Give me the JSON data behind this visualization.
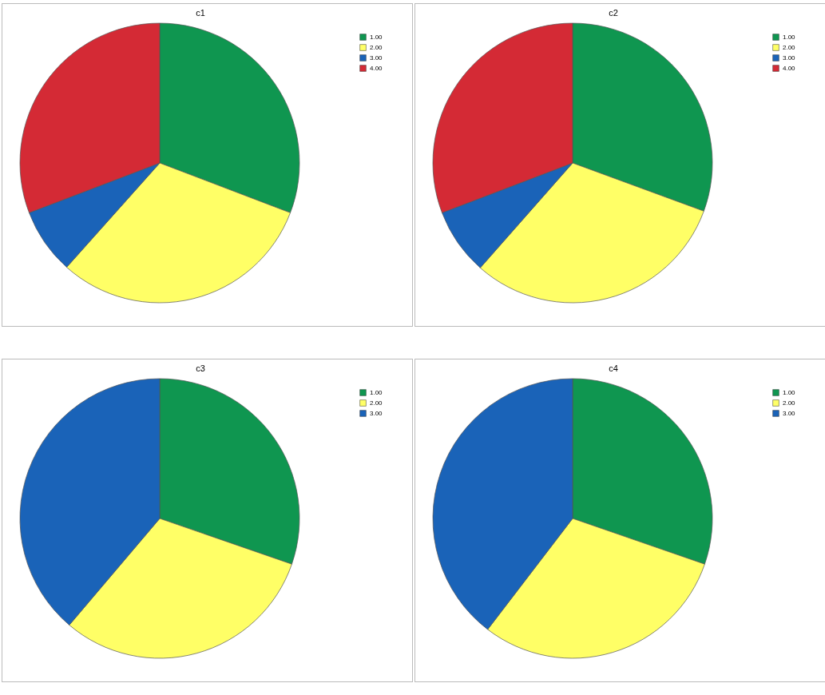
{
  "chart_data": [
    {
      "type": "pie",
      "title": "c1",
      "categories": [
        "1.00",
        "2.00",
        "3.00",
        "4.00"
      ],
      "values": [
        30.8,
        30.8,
        7.6,
        30.8
      ],
      "colors": [
        "#0f9650",
        "#ffff66",
        "#1a63b8",
        "#d42a35"
      ],
      "legend": "top right"
    },
    {
      "type": "pie",
      "title": "c2",
      "categories": [
        "1.00",
        "2.00",
        "3.00",
        "4.00"
      ],
      "values": [
        30.6,
        30.9,
        7.7,
        30.8
      ],
      "colors": [
        "#0f9650",
        "#ffff66",
        "#1a63b8",
        "#d42a35"
      ],
      "legend": "top right"
    },
    {
      "type": "pie",
      "title": "c3",
      "categories": [
        "1.00",
        "2.00",
        "3.00"
      ],
      "values": [
        30.3,
        30.9,
        38.8
      ],
      "colors": [
        "#0f9650",
        "#ffff66",
        "#1a63b8"
      ],
      "legend": "top right"
    },
    {
      "type": "pie",
      "title": "c4",
      "categories": [
        "1.00",
        "2.00",
        "3.00"
      ],
      "values": [
        30.3,
        30.1,
        39.6
      ],
      "colors": [
        "#0f9650",
        "#ffff66",
        "#1a63b8"
      ],
      "legend": "top right"
    }
  ]
}
